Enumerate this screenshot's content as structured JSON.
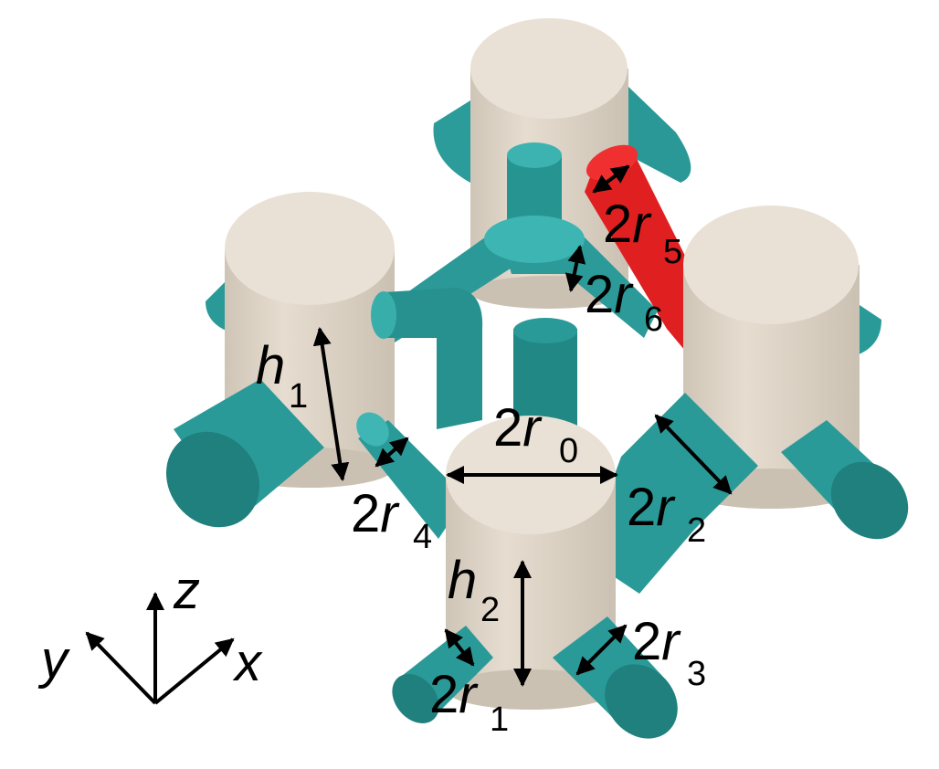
{
  "labels": {
    "r0": {
      "coef": "2",
      "var": "r",
      "sub": "0"
    },
    "r1": {
      "coef": "2",
      "var": "r",
      "sub": "1"
    },
    "r2": {
      "coef": "2",
      "var": "r",
      "sub": "2"
    },
    "r3": {
      "coef": "2",
      "var": "r",
      "sub": "3"
    },
    "r4": {
      "coef": "2",
      "var": "r",
      "sub": "4"
    },
    "r5": {
      "coef": "2",
      "var": "r",
      "sub": "5"
    },
    "r6": {
      "coef": "2",
      "var": "r",
      "sub": "6"
    },
    "h1": {
      "var": "h",
      "sub": "1"
    },
    "h2": {
      "var": "h",
      "sub": "2"
    }
  },
  "axes": {
    "x": "x",
    "y": "y",
    "z": "z"
  },
  "colors": {
    "pillar_top": "#e8e0d4",
    "pillar_side": "#d8cfc2",
    "rod_teal": "#2a9a98",
    "rod_teal_dark": "#1e7f7d",
    "rod_teal_light": "#3fb6b3",
    "highlight_red": "#e02020"
  }
}
